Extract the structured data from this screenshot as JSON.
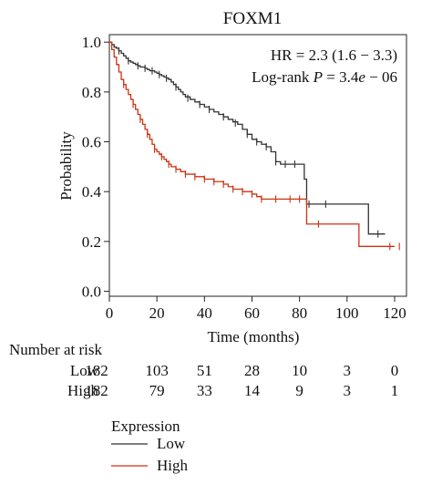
{
  "chart_data": {
    "type": "line",
    "title": "FOXM1",
    "xlabel": "Time (months)",
    "ylabel": "Probability",
    "xlim": [
      0,
      125
    ],
    "ylim": [
      -0.02,
      1.03
    ],
    "x_ticks": [
      0,
      20,
      40,
      60,
      80,
      100,
      120
    ],
    "y_ticks": [
      0.0,
      0.2,
      0.4,
      0.6,
      0.8,
      1.0
    ],
    "x_tick_labels": [
      "0",
      "20",
      "40",
      "60",
      "80",
      "100",
      "120"
    ],
    "y_tick_labels": [
      "0.0",
      "0.2",
      "0.4",
      "0.6",
      "0.8",
      "1.0"
    ],
    "annotations": {
      "hr_text": "HR = 2.3 (1.6 − 3.3)",
      "logrank_prefix": "Log-rank ",
      "logrank_p": "P",
      "logrank_eq": " = 3.4",
      "logrank_e": "e",
      "logrank_exp": " − 06"
    },
    "series": [
      {
        "name": "Low",
        "color": "#333333",
        "x": [
          0,
          1,
          2,
          3,
          4,
          5,
          6,
          7,
          8,
          9,
          10,
          11,
          12,
          13,
          14,
          15,
          16,
          17,
          18,
          19,
          20,
          21,
          22,
          23,
          24,
          25,
          26,
          27,
          28,
          29,
          30,
          31,
          32,
          34,
          36,
          38,
          40,
          42,
          44,
          46,
          48,
          50,
          52,
          54,
          56,
          58,
          60,
          62,
          64,
          66,
          68,
          70,
          72,
          76,
          80,
          82,
          83,
          84,
          90,
          100,
          108,
          109,
          116
        ],
        "y": [
          1.0,
          0.99,
          0.98,
          0.975,
          0.965,
          0.955,
          0.945,
          0.935,
          0.925,
          0.92,
          0.915,
          0.91,
          0.905,
          0.9,
          0.9,
          0.895,
          0.89,
          0.885,
          0.885,
          0.88,
          0.875,
          0.87,
          0.865,
          0.86,
          0.855,
          0.85,
          0.84,
          0.83,
          0.82,
          0.81,
          0.8,
          0.79,
          0.78,
          0.77,
          0.76,
          0.75,
          0.74,
          0.73,
          0.72,
          0.71,
          0.7,
          0.69,
          0.68,
          0.67,
          0.65,
          0.63,
          0.61,
          0.6,
          0.59,
          0.58,
          0.56,
          0.52,
          0.51,
          0.51,
          0.51,
          0.45,
          0.35,
          0.35,
          0.35,
          0.35,
          0.35,
          0.23,
          0.23
        ],
        "censor_x": [
          4,
          8,
          12,
          15,
          18,
          21,
          24,
          28,
          33,
          38,
          42,
          48,
          53,
          58,
          62,
          66,
          70,
          74,
          78,
          84,
          91,
          113
        ],
        "censor_y": [
          0.965,
          0.925,
          0.905,
          0.895,
          0.885,
          0.87,
          0.855,
          0.82,
          0.775,
          0.75,
          0.73,
          0.7,
          0.675,
          0.63,
          0.6,
          0.58,
          0.52,
          0.51,
          0.51,
          0.35,
          0.35,
          0.23
        ]
      },
      {
        "name": "High",
        "color": "#cc3311",
        "x": [
          0,
          1,
          2,
          3,
          4,
          5,
          6,
          7,
          8,
          9,
          10,
          11,
          12,
          13,
          14,
          15,
          16,
          17,
          18,
          19,
          20,
          21,
          22,
          23,
          24,
          25,
          26,
          27,
          28,
          29,
          30,
          32,
          34,
          36,
          38,
          40,
          42,
          44,
          46,
          48,
          50,
          52,
          54,
          56,
          58,
          60,
          62,
          64,
          66,
          70,
          76,
          80,
          82,
          83,
          86,
          100,
          104,
          105,
          120
        ],
        "y": [
          1.0,
          0.97,
          0.94,
          0.91,
          0.88,
          0.85,
          0.83,
          0.81,
          0.79,
          0.77,
          0.75,
          0.73,
          0.71,
          0.69,
          0.67,
          0.65,
          0.63,
          0.61,
          0.59,
          0.57,
          0.56,
          0.55,
          0.54,
          0.53,
          0.52,
          0.51,
          0.5,
          0.5,
          0.49,
          0.49,
          0.48,
          0.47,
          0.47,
          0.46,
          0.46,
          0.45,
          0.45,
          0.44,
          0.44,
          0.43,
          0.42,
          0.41,
          0.41,
          0.4,
          0.4,
          0.39,
          0.38,
          0.37,
          0.37,
          0.37,
          0.37,
          0.37,
          0.37,
          0.27,
          0.27,
          0.27,
          0.27,
          0.18,
          0.18
        ],
        "censor_x": [
          6,
          10,
          13,
          16,
          19,
          22,
          25,
          28,
          32,
          36,
          40,
          44,
          48,
          52,
          56,
          60,
          64,
          70,
          76,
          80,
          88,
          118,
          122
        ],
        "censor_y": [
          0.83,
          0.75,
          0.69,
          0.63,
          0.57,
          0.54,
          0.51,
          0.49,
          0.47,
          0.46,
          0.45,
          0.44,
          0.43,
          0.41,
          0.4,
          0.39,
          0.37,
          0.37,
          0.37,
          0.37,
          0.27,
          0.18,
          0.18
        ]
      }
    ],
    "risk_table": {
      "title": "Number at risk",
      "times": [
        0,
        20,
        40,
        60,
        80,
        100,
        120
      ],
      "rows": [
        {
          "label": "Low",
          "values": [
            "182",
            "103",
            "51",
            "28",
            "10",
            "3",
            "0"
          ]
        },
        {
          "label": "High",
          "values": [
            "182",
            "79",
            "33",
            "14",
            "9",
            "3",
            "1"
          ]
        }
      ]
    },
    "legend": {
      "title": "Expression",
      "position": "bottom-left",
      "items": [
        {
          "label": "Low",
          "color": "#333333"
        },
        {
          "label": "High",
          "color": "#cc3311"
        }
      ]
    }
  }
}
